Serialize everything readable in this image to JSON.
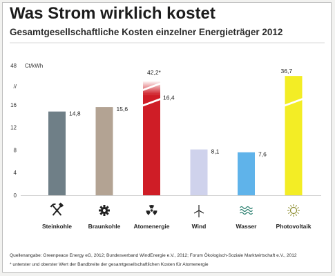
{
  "page": {
    "title": "Was Strom wirklich kostet",
    "subtitle": "Gesamtgesellschaftliche Kosten einzelner Energieträger 2012",
    "sources": "Quellenangabe: Greenpeace Energy eG, 2012; Bundesverband WindEnergie e.V., 2012; Forum Ökologisch-Soziale Marktwirtschaft e.V., 2012",
    "footnote": "* unterster und oberster Wert der Bandbreite der gesamtgesellschaftlichen Kosten für Atomenergie"
  },
  "chart_data": {
    "type": "bar",
    "title": "Was Strom wirklich kostet",
    "subtitle": "Gesamtgesellschaftliche Kosten einzelner Energieträger 2012",
    "ylabel": "Ct/kWh",
    "y_ticks": [
      "0",
      "4",
      "8",
      "12",
      "16",
      "//",
      "48"
    ],
    "y_scale": "broken axis: 0–16 linear, break marked //, top tick 48",
    "categories": [
      "Steinkohle",
      "Braunkohle",
      "Atomenergie",
      "Wind",
      "Wasser",
      "Photovoltaik"
    ],
    "values": [
      14.8,
      15.6,
      16.4,
      8.1,
      7.6,
      36.7
    ],
    "value_labels": [
      "14,8",
      "15,6",
      "16,4",
      "8,1",
      "7,6",
      "36,7"
    ],
    "range_upper": {
      "category": "Atomenergie",
      "value": 42.2,
      "label": "42,2*"
    },
    "colors": [
      "#6f7f87",
      "#b3a393",
      "#cf1d26",
      "#cfd2ec",
      "#5fb3ea",
      "#f3ed25"
    ],
    "icons": [
      "hammer-pick-icon",
      "gear-icon",
      "radiation-icon",
      "wind-turbine-icon",
      "water-waves-icon",
      "sun-icon"
    ],
    "grid": false,
    "legend": "none"
  }
}
